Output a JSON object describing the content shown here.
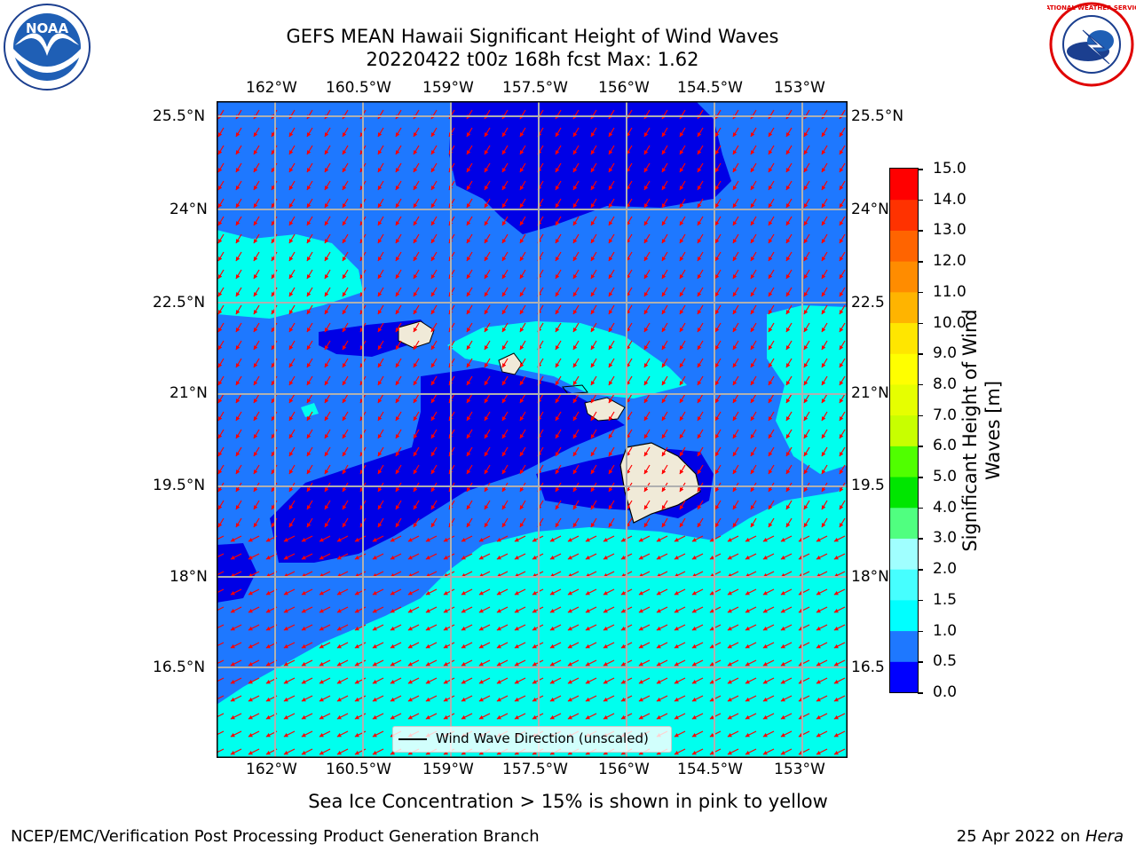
{
  "title": {
    "line1": "GEFS MEAN Hawaii Significant Height of Wind Waves",
    "line2": "20220422 t00z 168h fcst   Max: 1.62"
  },
  "map": {
    "lon_labels": [
      "162°W",
      "160.5°W",
      "159°W",
      "157.5°W",
      "156°W",
      "154.5°W",
      "153°W"
    ],
    "lat_labels_left": [
      "25.5°N",
      "24°N",
      "22.5°N",
      "21°N",
      "19.5°N",
      "18°N",
      "16.5°N"
    ],
    "lat_labels_right": [
      "25.5°N",
      "24°N",
      "22.5",
      "21°N",
      "19.5",
      "18°N",
      "16.5"
    ],
    "legend_label": "Wind Wave Direction (unscaled)",
    "arrow_color": "#ff0000",
    "colors": {
      "deep_blue": "#0000e6",
      "mid_blue": "#1e78ff",
      "cyan": "#00ffee",
      "land": "#f0ead8"
    }
  },
  "colorbar": {
    "ticks": [
      "0.0",
      "0.5",
      "1.0",
      "1.5",
      "2.0",
      "3.0",
      "4.0",
      "5.0",
      "6.0",
      "7.0",
      "8.0",
      "9.0",
      "10.0",
      "11.0",
      "12.0",
      "13.0",
      "14.0",
      "15.0"
    ],
    "colors": [
      "#0000ff",
      "#1e78ff",
      "#00ffff",
      "#46ffff",
      "#a0ffff",
      "#50ff80",
      "#00e600",
      "#50ff00",
      "#c8ff00",
      "#e6ff00",
      "#ffff00",
      "#ffe600",
      "#ffb400",
      "#ff8c00",
      "#ff6400",
      "#ff3200",
      "#ff0000"
    ],
    "label_line1": "Significant Height of Wind",
    "label_line2": "Waves [m]"
  },
  "subtitle": "Sea Ice Concentration > 15% is shown in pink to yellow",
  "footer": {
    "left": "NCEP/EMC/Verification Post Processing Product Generation Branch",
    "right_prefix": "25 Apr 2022 on ",
    "right_host": "Hera"
  },
  "logos": {
    "noaa_text": "NOAA",
    "nws_text": "NATIONAL WEATHER SERVICE"
  }
}
